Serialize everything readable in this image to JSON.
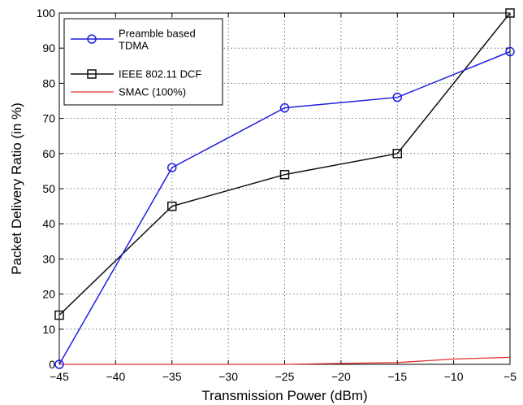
{
  "chart_data": {
    "type": "line",
    "xlabel": "Transmission Power (dBm)",
    "ylabel": "Packet Delivery Ratio (in %)",
    "xlim": [
      -45,
      -5
    ],
    "ylim": [
      0,
      100
    ],
    "x_ticks": [
      -45,
      -40,
      -35,
      -30,
      -25,
      -20,
      -15,
      -10,
      -5
    ],
    "x_tick_labels": [
      "−45",
      "−40",
      "−35",
      "−30",
      "−25",
      "−20",
      "−15",
      "−10",
      "−5"
    ],
    "y_ticks": [
      0,
      10,
      20,
      30,
      40,
      50,
      60,
      70,
      80,
      90,
      100
    ],
    "y_tick_labels": [
      "0",
      "10",
      "20",
      "30",
      "40",
      "50",
      "60",
      "70",
      "80",
      "90",
      "100"
    ],
    "grid": true,
    "legend_position": "top-left",
    "series": [
      {
        "name": "Preamble based TDMA",
        "legend_lines": [
          "Preamble based",
          "TDMA"
        ],
        "color": "#1f1fe0",
        "marker": "circle",
        "x": [
          -45,
          -35,
          -25,
          -15,
          -5
        ],
        "y": [
          0,
          56,
          73,
          76,
          89
        ]
      },
      {
        "name": "IEEE 802.11 DCF",
        "legend_lines": [
          "IEEE 802.11 DCF"
        ],
        "color": "#111111",
        "marker": "square",
        "x": [
          -45,
          -35,
          -25,
          -15,
          -5
        ],
        "y": [
          14,
          45,
          54,
          60,
          100
        ]
      },
      {
        "name": "SMAC (100%)",
        "legend_lines": [
          "SMAC (100%)"
        ],
        "color": "#e03030",
        "marker": "none",
        "x": [
          -45,
          -35,
          -25,
          -15,
          -10,
          -5
        ],
        "y": [
          0,
          0,
          0,
          0.5,
          1.5,
          2
        ]
      }
    ]
  }
}
